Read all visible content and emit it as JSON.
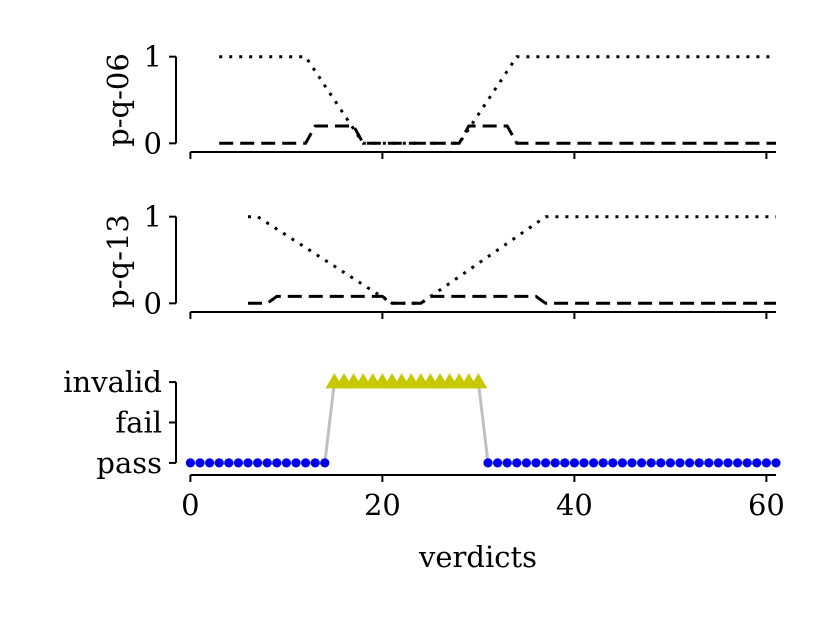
{
  "chart_data": [
    {
      "type": "line",
      "ylabel": "p-q-06",
      "xlim": [
        -1.5,
        61
      ],
      "ylim": [
        -0.1,
        1.1
      ],
      "yticks": [
        {
          "value": 0,
          "label": "0"
        },
        {
          "value": 1,
          "label": "1"
        }
      ],
      "xticks": [
        0,
        20,
        40,
        60
      ],
      "series": [
        {
          "style": "dotted",
          "x": [
            3,
            12,
            18,
            28,
            34,
            61
          ],
          "y": [
            1,
            1,
            0,
            0,
            1,
            1
          ]
        },
        {
          "style": "dashed",
          "x": [
            3,
            12,
            13,
            17,
            18,
            28,
            29,
            33,
            34,
            61
          ],
          "y": [
            0,
            0,
            0.2,
            0.2,
            0,
            0,
            0.2,
            0.2,
            0,
            0
          ]
        }
      ]
    },
    {
      "type": "line",
      "ylabel": "p-q-13",
      "xlim": [
        -1.5,
        61
      ],
      "ylim": [
        -0.1,
        1.1
      ],
      "yticks": [
        {
          "value": 0,
          "label": "0"
        },
        {
          "value": 1,
          "label": "1"
        }
      ],
      "xticks": [
        0,
        20,
        40,
        60
      ],
      "series": [
        {
          "style": "dotted",
          "x": [
            6,
            7,
            21,
            24,
            37,
            61
          ],
          "y": [
            1,
            1,
            0,
            0,
            1,
            1
          ]
        },
        {
          "style": "dashed",
          "x": [
            6,
            8,
            9,
            20,
            21,
            24,
            25,
            36,
            37,
            61
          ],
          "y": [
            0,
            0,
            0.08,
            0.08,
            0,
            0,
            0.08,
            0.08,
            0,
            0
          ]
        }
      ]
    },
    {
      "type": "scatter",
      "xlabel": "verdicts",
      "xlim": [
        -1.5,
        61
      ],
      "ylim": [
        -0.3,
        2.3
      ],
      "categories": [
        "pass",
        "fail",
        "invalid"
      ],
      "xticks": [
        {
          "value": 0,
          "label": "0"
        },
        {
          "value": 20,
          "label": "20"
        },
        {
          "value": 40,
          "label": "40"
        },
        {
          "value": 60,
          "label": "60"
        }
      ],
      "connector_color": "#c0c0c0",
      "pass_color": "#0000ee",
      "invalid_color": "#c8c800",
      "points": {
        "pass_x": [
          0,
          1,
          2,
          3,
          4,
          5,
          6,
          7,
          8,
          9,
          10,
          11,
          12,
          13,
          14,
          31,
          32,
          33,
          34,
          35,
          36,
          37,
          38,
          39,
          40,
          41,
          42,
          43,
          44,
          45,
          46,
          47,
          48,
          49,
          50,
          51,
          52,
          53,
          54,
          55,
          56,
          57,
          58,
          59,
          60,
          61
        ],
        "invalid_x": [
          15,
          16,
          17,
          18,
          19,
          20,
          21,
          22,
          23,
          24,
          25,
          26,
          27,
          28,
          29,
          30
        ]
      }
    }
  ]
}
